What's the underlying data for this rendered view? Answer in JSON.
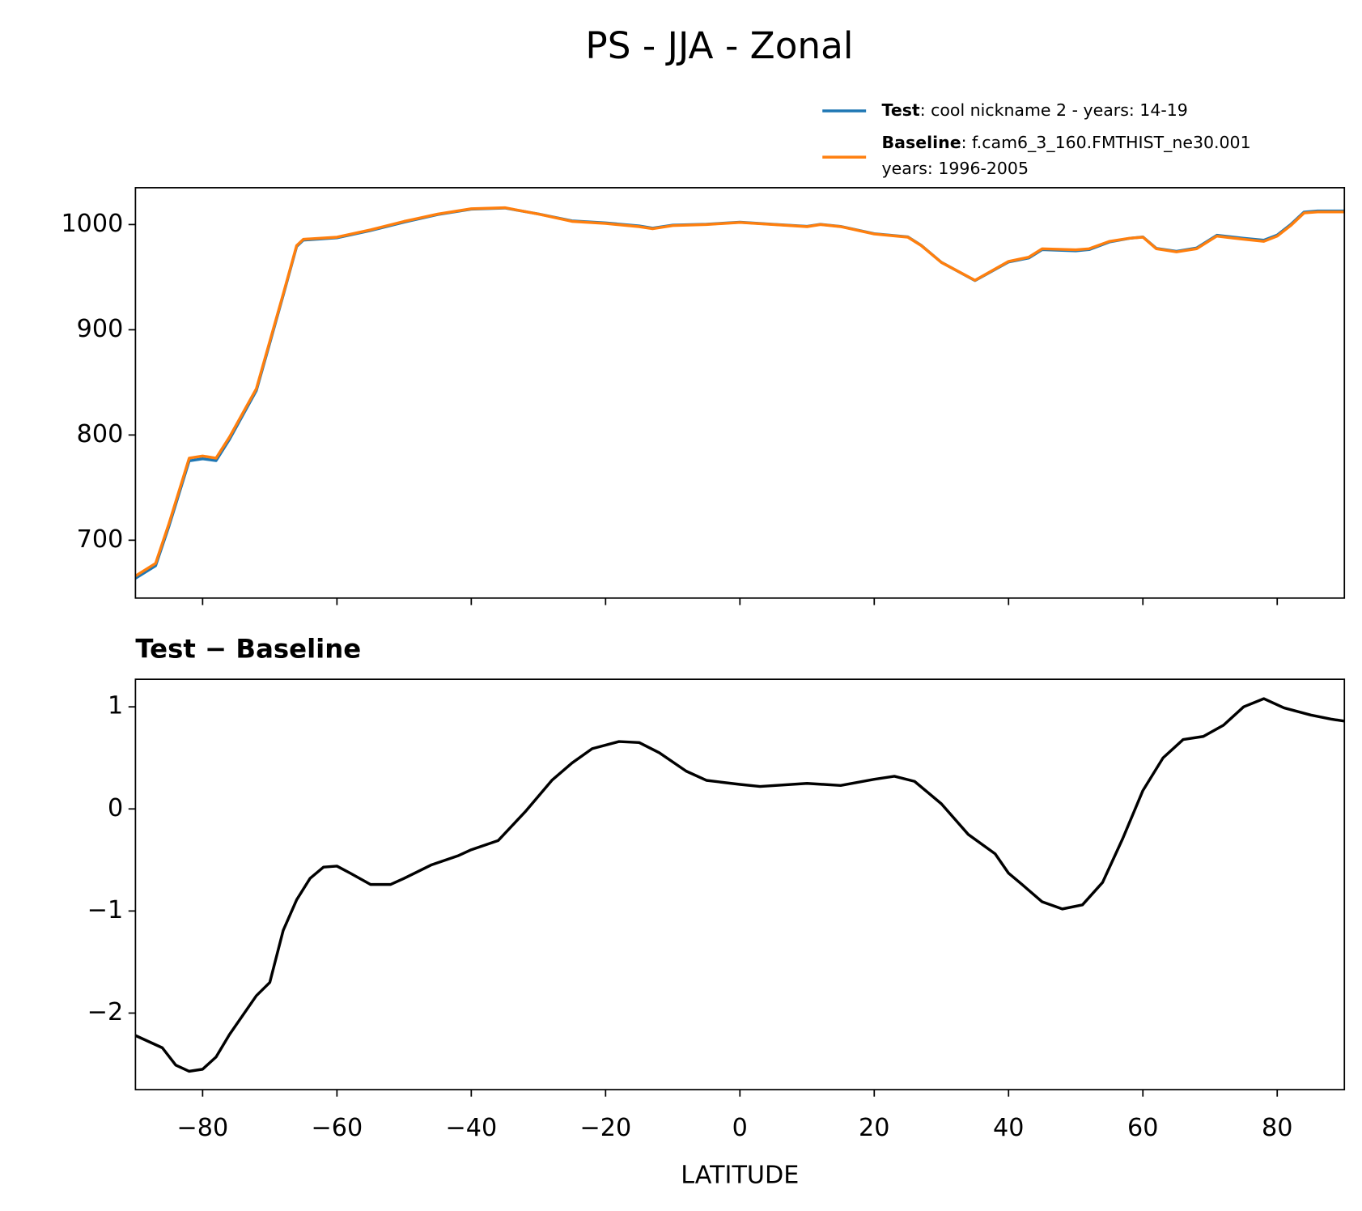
{
  "title": "PS - JJA - Zonal",
  "chart_data": [
    {
      "type": "line",
      "x": [
        -90,
        -87,
        -85,
        -82,
        -80,
        -78,
        -76,
        -72,
        -70,
        -68,
        -66,
        -65,
        -60,
        -55,
        -50,
        -45,
        -40,
        -35,
        -30,
        -25,
        -20,
        -15,
        -13,
        -10,
        -5,
        0,
        5,
        10,
        12,
        15,
        20,
        25,
        27,
        30,
        35,
        40,
        43,
        45,
        50,
        52,
        55,
        58,
        60,
        62,
        65,
        68,
        71,
        75,
        78,
        80,
        82,
        84,
        86,
        90
      ],
      "series": [
        {
          "name": "Test",
          "description": [
            ": cool nickname 2 - years: 14-19"
          ],
          "color": "#1f77b4",
          "values": [
            663.8,
            675.7,
            713.5,
            775.4,
            777.4,
            775.6,
            795.8,
            842.2,
            887.3,
            932.8,
            979.1,
            985.2,
            987.4,
            994.3,
            1002.3,
            1009.5,
            1014.6,
            1015.7,
            1010.1,
            1003.5,
            1001.6,
            998.7,
            996.6,
            999.5,
            1000.3,
            1002.2,
            1000.2,
            998.3,
            1000.2,
            998.2,
            991.3,
            988.3,
            980.2,
            964.1,
            946.7,
            964.4,
            968.2,
            976.1,
            975,
            976.2,
            983.4,
            986.9,
            988.2,
            977.4,
            974.6,
            977.7,
            989.8,
            987,
            985.1,
            990,
            1000,
            1011.9,
            1012.9,
            1012.9
          ]
        },
        {
          "name": "Baseline",
          "description": [
            ": f.cam6_3_160.FMTHIST_ne30.001",
            "years: 1996-2005"
          ],
          "color": "#ff7f0e",
          "values": [
            666,
            678,
            716,
            778,
            780,
            778,
            798,
            844,
            889,
            934,
            980,
            986,
            988,
            995,
            1003,
            1010,
            1015,
            1016,
            1010,
            1003,
            1001,
            998,
            996,
            999,
            1000,
            1002,
            1000,
            998,
            1000,
            998,
            991,
            988,
            980,
            964,
            947,
            965,
            969,
            977,
            976,
            977,
            984,
            987,
            988,
            977,
            974,
            977,
            989,
            986,
            984,
            989,
            999,
            1011,
            1012,
            1012
          ]
        }
      ],
      "xlim": [
        -90,
        90
      ],
      "xticks": [
        -80,
        -60,
        -40,
        -20,
        0,
        20,
        40,
        60,
        80
      ],
      "ylim": [
        645,
        1035
      ],
      "yticks": [
        700,
        800,
        900,
        1000
      ],
      "legend": "upper right",
      "grid": false
    },
    {
      "type": "line",
      "title": "Test − Baseline",
      "xlabel": "LATITUDE",
      "x": [
        -90,
        -86,
        -84,
        -82,
        -80,
        -78,
        -76,
        -72,
        -70,
        -68,
        -66,
        -64,
        -62,
        -60,
        -58,
        -55,
        -52,
        -50,
        -46,
        -42,
        -40,
        -36,
        -32,
        -28,
        -25,
        -22,
        -18,
        -15,
        -12,
        -8,
        -5,
        0,
        3,
        10,
        15,
        20,
        23,
        26,
        30,
        34,
        38,
        40,
        42,
        45,
        48,
        51,
        54,
        57,
        60,
        63,
        66,
        69,
        72,
        75,
        78,
        81,
        85,
        88,
        90
      ],
      "series": [
        {
          "color": "#000000",
          "values": [
            -2.22,
            -2.34,
            -2.51,
            -2.57,
            -2.55,
            -2.43,
            -2.21,
            -1.83,
            -1.7,
            -1.19,
            -0.89,
            -0.68,
            -0.57,
            -0.56,
            -0.63,
            -0.74,
            -0.74,
            -0.68,
            -0.55,
            -0.46,
            -0.4,
            -0.31,
            -0.03,
            0.28,
            0.45,
            0.59,
            0.66,
            0.65,
            0.55,
            0.37,
            0.28,
            0.24,
            0.22,
            0.25,
            0.23,
            0.29,
            0.32,
            0.27,
            0.05,
            -0.25,
            -0.44,
            -0.63,
            -0.74,
            -0.91,
            -0.98,
            -0.94,
            -0.72,
            -0.29,
            0.18,
            0.5,
            0.68,
            0.71,
            0.82,
            1.0,
            1.08,
            0.99,
            0.92,
            0.88,
            0.86
          ]
        }
      ],
      "xlim": [
        -90,
        90
      ],
      "xticks": [
        {
          "value": -80,
          "label": "−80"
        },
        {
          "value": -60,
          "label": "−60"
        },
        {
          "value": -40,
          "label": "−40"
        },
        {
          "value": -20,
          "label": "−20"
        },
        0,
        20,
        40,
        60,
        80
      ],
      "ylim": [
        -2.75,
        1.27
      ],
      "yticks": [
        {
          "value": -2,
          "label": "−2"
        },
        {
          "value": -1,
          "label": "−1"
        },
        0,
        1
      ],
      "grid": false
    }
  ]
}
